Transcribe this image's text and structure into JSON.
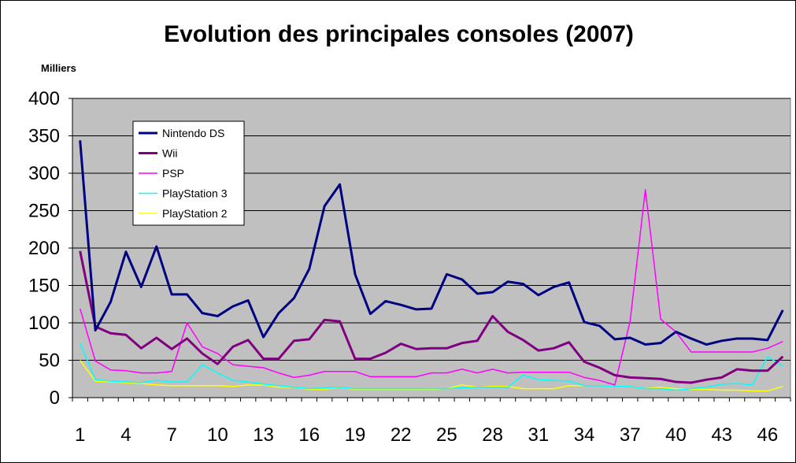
{
  "chart_data": {
    "type": "line",
    "title": "Evolution des principales consoles (2007)",
    "unit_label": "Milliers",
    "ylim": [
      0,
      400
    ],
    "y_ticks": [
      0,
      50,
      100,
      150,
      200,
      250,
      300,
      350,
      400
    ],
    "x": [
      1,
      2,
      3,
      4,
      5,
      6,
      7,
      8,
      9,
      10,
      11,
      12,
      13,
      14,
      15,
      16,
      17,
      18,
      19,
      20,
      21,
      22,
      23,
      24,
      25,
      26,
      27,
      28,
      29,
      30,
      31,
      32,
      33,
      34,
      35,
      36,
      37,
      38,
      39,
      40,
      41,
      42,
      43,
      44,
      45,
      46,
      47
    ],
    "x_tick_labels": [
      1,
      4,
      7,
      10,
      13,
      16,
      19,
      22,
      25,
      28,
      31,
      34,
      37,
      40,
      43,
      46
    ],
    "grid": true,
    "legend_position": "top-left",
    "plot_background": "#c0c0c0",
    "series": [
      {
        "name": "Nintendo DS",
        "color": "#000080",
        "values": [
          344,
          90,
          128,
          195,
          148,
          202,
          138,
          138,
          113,
          109,
          122,
          130,
          81,
          113,
          133,
          172,
          256,
          285,
          165,
          112,
          129,
          124,
          118,
          119,
          165,
          158,
          139,
          141,
          155,
          152,
          137,
          148,
          154,
          101,
          96,
          78,
          80,
          71,
          73,
          88,
          79,
          71,
          76,
          79,
          79,
          77,
          117
        ]
      },
      {
        "name": "Wii",
        "color": "#800080",
        "values": [
          196,
          95,
          86,
          84,
          66,
          80,
          65,
          79,
          59,
          45,
          68,
          77,
          52,
          52,
          76,
          78,
          104,
          102,
          52,
          52,
          60,
          72,
          65,
          66,
          66,
          73,
          76,
          109,
          88,
          77,
          63,
          66,
          74,
          48,
          40,
          30,
          27,
          26,
          25,
          21,
          20,
          24,
          27,
          38,
          36,
          36,
          55
        ]
      },
      {
        "name": "PSP",
        "color": "#ff00ff",
        "values": [
          119,
          49,
          37,
          36,
          33,
          33,
          35,
          100,
          68,
          59,
          44,
          42,
          40,
          33,
          27,
          30,
          35,
          35,
          35,
          28,
          28,
          28,
          28,
          33,
          33,
          38,
          33,
          38,
          33,
          34,
          34,
          34,
          34,
          27,
          23,
          17,
          102,
          278,
          105,
          88,
          61,
          61,
          61,
          61,
          61,
          66,
          75
        ]
      },
      {
        "name": "PlayStation 3",
        "color": "#00ffff",
        "values": [
          73,
          24,
          22,
          21,
          20,
          23,
          21,
          21,
          44,
          33,
          23,
          21,
          18,
          16,
          14,
          12,
          13,
          14,
          12,
          12,
          12,
          12,
          12,
          12,
          12,
          13,
          14,
          14,
          14,
          30,
          24,
          23,
          22,
          16,
          16,
          15,
          15,
          12,
          12,
          10,
          12,
          14,
          18,
          19,
          17,
          55,
          42
        ]
      },
      {
        "name": "PlayStation 2",
        "color": "#ffff00",
        "values": [
          50,
          22,
          21,
          20,
          19,
          17,
          16,
          16,
          16,
          16,
          15,
          17,
          17,
          14,
          14,
          11,
          11,
          14,
          11,
          11,
          11,
          11,
          11,
          11,
          12,
          17,
          14,
          15,
          15,
          12,
          12,
          12,
          16,
          16,
          16,
          15,
          15,
          12,
          14,
          12,
          11,
          11,
          10,
          10,
          9,
          9,
          15
        ]
      }
    ]
  }
}
